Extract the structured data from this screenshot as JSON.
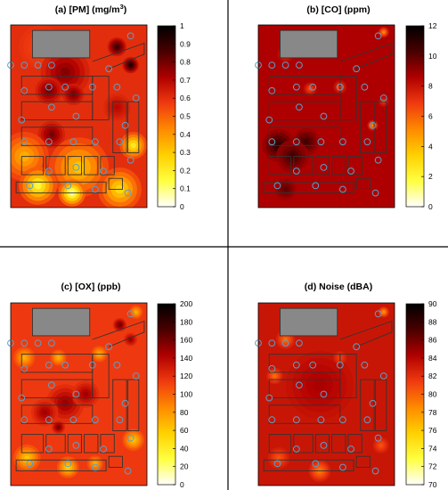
{
  "figure": {
    "colormap": [
      "#ffffff",
      "#ffff40",
      "#ffd000",
      "#ff8a00",
      "#f03a10",
      "#b00000",
      "#4a0000",
      "#000000"
    ],
    "building_fill": "#888888",
    "sensor_color": "#5aa0c8"
  },
  "chart_data": [
    {
      "type": "heatmap",
      "title": "(a) [PM] (mg/m3)",
      "title_parts": {
        "main": "(a) [PM] (mg/m",
        "sup": "3",
        "end": ")"
      },
      "colorbar": {
        "min": 0,
        "max": 1,
        "ticks": [
          "0",
          "0.1",
          "0.2",
          "0.3",
          "0.4",
          "0.5",
          "0.6",
          "0.7",
          "0.8",
          "0.9",
          "1"
        ]
      },
      "background_value": 0.6,
      "hotspots": [
        {
          "x": 0.22,
          "y": 0.12,
          "v": 0.55,
          "r": 0.16
        },
        {
          "x": 0.4,
          "y": 0.26,
          "v": 0.78,
          "r": 0.18
        },
        {
          "x": 0.78,
          "y": 0.12,
          "v": 0.9,
          "r": 0.07
        },
        {
          "x": 0.88,
          "y": 0.22,
          "v": 0.95,
          "r": 0.06
        },
        {
          "x": 0.28,
          "y": 0.36,
          "v": 0.8,
          "r": 0.1
        },
        {
          "x": 0.46,
          "y": 0.38,
          "v": 0.8,
          "r": 0.08
        },
        {
          "x": 0.3,
          "y": 0.6,
          "v": 0.8,
          "r": 0.1
        },
        {
          "x": 0.78,
          "y": 0.45,
          "v": 0.7,
          "r": 0.1
        },
        {
          "x": 0.1,
          "y": 0.72,
          "v": 0.35,
          "r": 0.18
        },
        {
          "x": 0.5,
          "y": 0.78,
          "v": 0.3,
          "r": 0.22
        },
        {
          "x": 0.9,
          "y": 0.66,
          "v": 0.2,
          "r": 0.1
        },
        {
          "x": 0.2,
          "y": 0.88,
          "v": 0.15,
          "r": 0.14
        },
        {
          "x": 0.45,
          "y": 0.92,
          "v": 0.05,
          "r": 0.1
        },
        {
          "x": 0.8,
          "y": 0.9,
          "v": 0.25,
          "r": 0.16
        }
      ]
    },
    {
      "type": "heatmap",
      "title": "(b) [CO] (ppm)",
      "colorbar": {
        "min": 0,
        "max": 12,
        "ticks": [
          "0",
          "2",
          "4",
          "6",
          "8",
          "10",
          "12"
        ]
      },
      "background_value": 8.6,
      "hotspots": [
        {
          "x": 0.15,
          "y": 0.66,
          "v": 11.0,
          "r": 0.12
        },
        {
          "x": 0.35,
          "y": 0.64,
          "v": 10.5,
          "r": 0.1
        },
        {
          "x": 0.25,
          "y": 0.72,
          "v": 10.5,
          "r": 0.12
        },
        {
          "x": 0.2,
          "y": 0.9,
          "v": 10.0,
          "r": 0.08
        },
        {
          "x": 0.2,
          "y": 0.16,
          "v": 7.0,
          "r": 0.06
        },
        {
          "x": 0.38,
          "y": 0.35,
          "v": 6.5,
          "r": 0.05
        },
        {
          "x": 0.6,
          "y": 0.34,
          "v": 6.5,
          "r": 0.05
        },
        {
          "x": 0.92,
          "y": 0.04,
          "v": 5.0,
          "r": 0.04
        },
        {
          "x": 0.84,
          "y": 0.55,
          "v": 5.0,
          "r": 0.04
        },
        {
          "x": 0.92,
          "y": 0.42,
          "v": 7.0,
          "r": 0.04
        }
      ]
    },
    {
      "type": "heatmap",
      "title": "(c) [OX] (ppb)",
      "colorbar": {
        "min": 0,
        "max": 200,
        "ticks": [
          "0",
          "20",
          "40",
          "60",
          "80",
          "100",
          "120",
          "140",
          "160",
          "180",
          "200"
        ]
      },
      "background_value": 115,
      "hotspots": [
        {
          "x": 0.4,
          "y": 0.55,
          "v": 150,
          "r": 0.14
        },
        {
          "x": 0.55,
          "y": 0.5,
          "v": 148,
          "r": 0.1
        },
        {
          "x": 0.25,
          "y": 0.6,
          "v": 148,
          "r": 0.1
        },
        {
          "x": 0.35,
          "y": 0.68,
          "v": 160,
          "r": 0.05
        },
        {
          "x": 0.8,
          "y": 0.12,
          "v": 165,
          "r": 0.05
        },
        {
          "x": 0.88,
          "y": 0.2,
          "v": 150,
          "r": 0.05
        },
        {
          "x": 0.1,
          "y": 0.3,
          "v": 70,
          "r": 0.08
        },
        {
          "x": 0.35,
          "y": 0.3,
          "v": 70,
          "r": 0.06
        },
        {
          "x": 0.65,
          "y": 0.28,
          "v": 70,
          "r": 0.06
        },
        {
          "x": 0.12,
          "y": 0.85,
          "v": 60,
          "r": 0.1
        },
        {
          "x": 0.42,
          "y": 0.9,
          "v": 55,
          "r": 0.08
        },
        {
          "x": 0.62,
          "y": 0.88,
          "v": 70,
          "r": 0.06
        },
        {
          "x": 0.9,
          "y": 0.75,
          "v": 60,
          "r": 0.08
        },
        {
          "x": 0.92,
          "y": 0.05,
          "v": 70,
          "r": 0.05
        }
      ]
    },
    {
      "type": "heatmap",
      "title": "(d) Noise (dBA)",
      "colorbar": {
        "min": 70,
        "max": 90,
        "ticks": [
          "70",
          "72",
          "74",
          "76",
          "78",
          "80",
          "82",
          "84",
          "86",
          "88",
          "90"
        ]
      },
      "background_value": 83.2,
      "hotspots": [
        {
          "x": 0.45,
          "y": 0.45,
          "v": 84.5,
          "r": 0.25
        },
        {
          "x": 0.2,
          "y": 0.2,
          "v": 79.5,
          "r": 0.07
        },
        {
          "x": 0.12,
          "y": 0.4,
          "v": 79.5,
          "r": 0.06
        },
        {
          "x": 0.45,
          "y": 0.92,
          "v": 79.0,
          "r": 0.08
        },
        {
          "x": 0.15,
          "y": 0.85,
          "v": 80.5,
          "r": 0.08
        },
        {
          "x": 0.92,
          "y": 0.05,
          "v": 78.0,
          "r": 0.04
        },
        {
          "x": 0.9,
          "y": 0.78,
          "v": 80.5,
          "r": 0.06
        },
        {
          "x": 0.6,
          "y": 0.3,
          "v": 81.0,
          "r": 0.05
        }
      ]
    }
  ]
}
